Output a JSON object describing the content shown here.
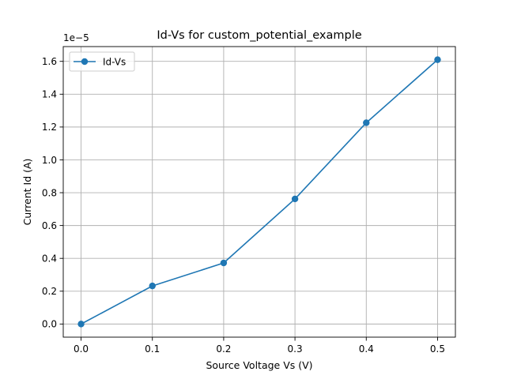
{
  "chart_data": {
    "type": "line",
    "title": "Id-Vs for custom_potential_example",
    "xlabel": "Source Voltage Vs (V)",
    "ylabel": "Current Id (A)",
    "y_offset_label": "1e−5",
    "y_multiplier": 1e-05,
    "xlim": [
      -0.025,
      0.525
    ],
    "ylim": [
      -0.08,
      1.69
    ],
    "x_ticks": [
      0.0,
      0.1,
      0.2,
      0.3,
      0.4,
      0.5
    ],
    "x_tick_labels": [
      "0.0",
      "0.1",
      "0.2",
      "0.3",
      "0.4",
      "0.5"
    ],
    "y_ticks": [
      0.0,
      0.2,
      0.4,
      0.6,
      0.8,
      1.0,
      1.2,
      1.4,
      1.6
    ],
    "y_tick_labels": [
      "0.0",
      "0.2",
      "0.4",
      "0.6",
      "0.8",
      "1.0",
      "1.2",
      "1.4",
      "1.6"
    ],
    "grid": true,
    "legend_position": "upper-left",
    "series": [
      {
        "name": "Id-Vs",
        "color": "#1f77b4",
        "marker": "circle",
        "x": [
          0.0,
          0.1,
          0.2,
          0.3,
          0.4,
          0.5
        ],
        "y": [
          0.0,
          0.232,
          0.372,
          0.762,
          1.226,
          1.61
        ]
      }
    ]
  }
}
